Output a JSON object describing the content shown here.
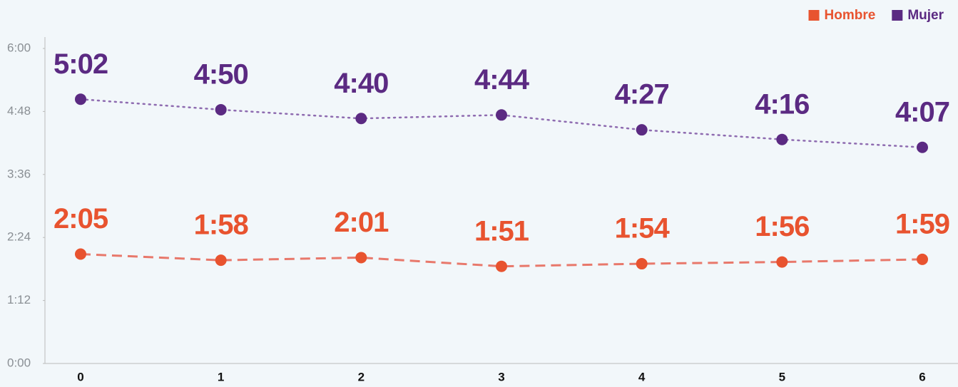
{
  "chart_data": {
    "type": "line",
    "categories": [
      "0",
      "1",
      "2",
      "3",
      "4",
      "5",
      "6"
    ],
    "series": [
      {
        "name": "Hombre",
        "color": "#e8532f",
        "line_color": "#e8786b",
        "line_style": "dashed",
        "values": [
          125,
          118,
          121,
          111,
          114,
          116,
          119
        ],
        "value_labels": [
          "2:05",
          "1:58",
          "2:01",
          "1:51",
          "1:54",
          "1:56",
          "1:59"
        ]
      },
      {
        "name": "Mujer",
        "color": "#5b2a82",
        "line_color": "#8e6bb0",
        "line_style": "dotted",
        "values": [
          302,
          290,
          280,
          284,
          267,
          256,
          247
        ],
        "value_labels": [
          "5:02",
          "4:50",
          "4:40",
          "4:44",
          "4:27",
          "4:16",
          "4:07"
        ]
      }
    ],
    "ylim": [
      0,
      360
    ],
    "yticks": [
      {
        "value": 0,
        "label": "0:00"
      },
      {
        "value": 72,
        "label": "1:12"
      },
      {
        "value": 144,
        "label": "2:24"
      },
      {
        "value": 216,
        "label": "3:36"
      },
      {
        "value": 288,
        "label": "4:48"
      },
      {
        "value": 360,
        "label": "6:00"
      }
    ],
    "legend": "top-right"
  }
}
